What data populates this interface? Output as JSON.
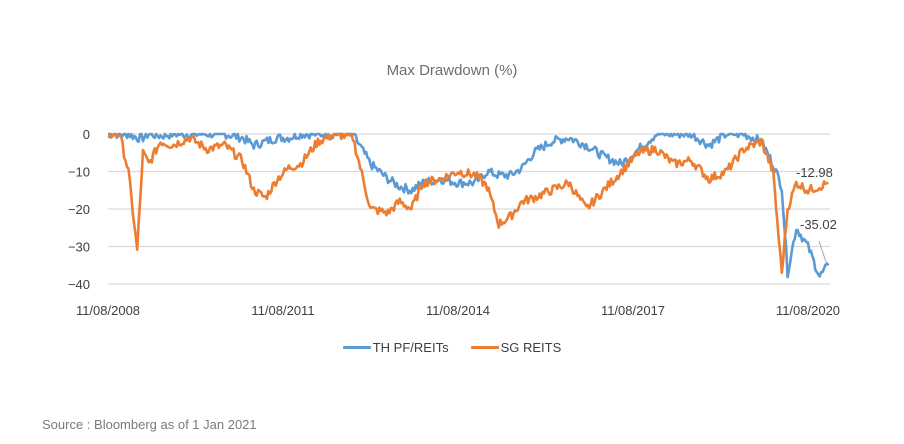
{
  "chart": {
    "title": "Max Drawdown (%)",
    "source": "Source : Bloomberg as of 1 Jan 2021"
  },
  "legend": [
    {
      "label": "TH PF/REITs",
      "color": "#5b9bd5"
    },
    {
      "label": "SG REITS",
      "color": "#ed7d31"
    }
  ],
  "annotations": [
    {
      "label": "-12.98",
      "series": "SG REITS"
    },
    {
      "label": "-35.02",
      "series": "TH PF/REITs"
    }
  ],
  "chart_data": {
    "type": "line",
    "title": "Max Drawdown (%)",
    "xlabel": "",
    "ylabel": "",
    "ylim": [
      -40,
      0
    ],
    "yticks": [
      0,
      -10,
      -20,
      -30,
      -40
    ],
    "xtick_labels": [
      "11/08/2008",
      "11/08/2011",
      "11/08/2014",
      "11/08/2017",
      "11/08/2020"
    ],
    "grid": true,
    "legend_position": "bottom",
    "x": [
      2008.6,
      2008.8,
      2008.95,
      2009.1,
      2009.2,
      2009.3,
      2009.5,
      2009.7,
      2010.0,
      2010.3,
      2010.6,
      2010.9,
      2011.1,
      2011.3,
      2011.5,
      2011.7,
      2011.9,
      2012.2,
      2012.5,
      2012.8,
      2013.1,
      2013.4,
      2013.6,
      2013.8,
      2014.0,
      2014.3,
      2014.6,
      2014.9,
      2015.1,
      2015.3,
      2015.5,
      2015.7,
      2015.9,
      2016.2,
      2016.5,
      2016.8,
      2017.1,
      2017.4,
      2017.7,
      2018.0,
      2018.3,
      2018.6,
      2018.9,
      2019.2,
      2019.5,
      2019.8,
      2020.0,
      2020.15,
      2020.25,
      2020.4,
      2020.6,
      2020.8,
      2020.95
    ],
    "series": [
      {
        "name": "TH PF/REITs",
        "color": "#5b9bd5",
        "values": [
          0,
          0,
          0,
          -1,
          -1,
          0,
          -0.5,
          0,
          0,
          0,
          0,
          -1,
          -3,
          -2,
          -1,
          -1,
          0,
          0,
          0,
          0,
          -8,
          -12,
          -14,
          -15,
          -13,
          -12,
          -13,
          -13,
          -10,
          -11,
          -11,
          -9,
          -5,
          -2,
          -1,
          -3,
          -6,
          -8,
          -4,
          0,
          0,
          0,
          -3,
          0,
          0,
          -2,
          -8,
          -14,
          -37,
          -25,
          -30,
          -38,
          -35.02
        ]
      },
      {
        "name": "SG REITS",
        "color": "#ed7d31",
        "values": [
          0,
          0,
          -10,
          -31,
          -5,
          -8,
          -2,
          -3,
          -1,
          -4,
          -3,
          -7,
          -15,
          -17,
          -12,
          -9,
          -8,
          -2,
          0,
          -1,
          -20,
          -21,
          -18,
          -20,
          -13,
          -12,
          -10,
          -11,
          -14,
          -24,
          -22,
          -18,
          -17,
          -15,
          -13,
          -20,
          -15,
          -10,
          -5,
          -4,
          -8,
          -7,
          -12,
          -10,
          -4,
          -2,
          -10,
          -37,
          -20,
          -13,
          -15,
          -14,
          -12.98
        ]
      }
    ]
  }
}
